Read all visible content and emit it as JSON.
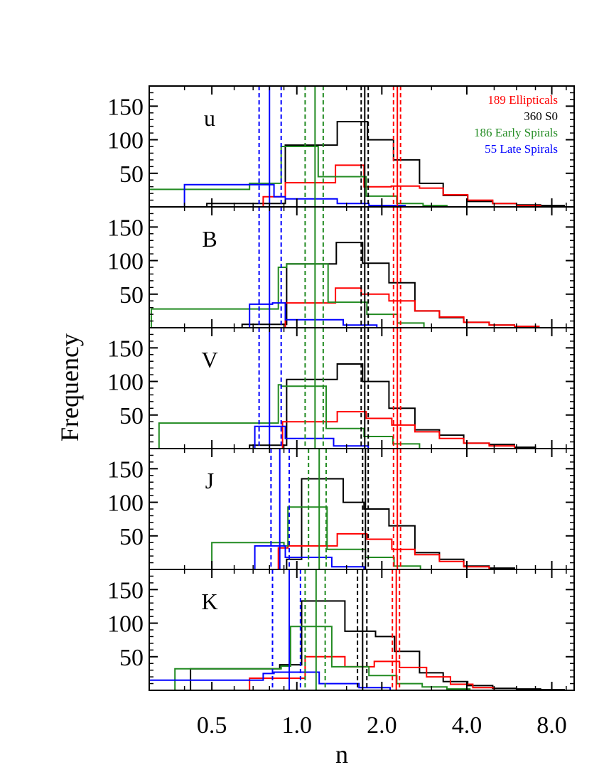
{
  "chart_data": {
    "type": "histogram",
    "xlabel": "n",
    "ylabel": "Frequency",
    "x_scale": "log",
    "xlim": [
      0.3,
      9.6
    ],
    "ylim": [
      0,
      180
    ],
    "x_tick_labels": [
      "0.5",
      "1.0",
      "2.0",
      "4.0",
      "8.0"
    ],
    "x_tick_values": [
      0.5,
      1.0,
      2.0,
      4.0,
      8.0
    ],
    "y_tick_labels": [
      "50",
      "100",
      "150"
    ],
    "y_tick_values": [
      50,
      100,
      150
    ],
    "colors": {
      "Ellipticals": "#ff0000",
      "S0": "#000000",
      "Early Spirals": "#228b22",
      "Late Spirals": "#0000ff"
    },
    "legend": [
      {
        "label": "189 Ellipticals",
        "color": "#ff0000"
      },
      {
        "label": "360 S0",
        "color": "#000000"
      },
      {
        "label": "186 Early Spirals",
        "color": "#228b22"
      },
      {
        "label": "55 Late Spirals",
        "color": "#0000ff"
      }
    ],
    "panels": [
      {
        "band": "u",
        "series": [
          {
            "name": "S0",
            "color": "#000000",
            "edges": [
              0.48,
              0.91,
              1.39,
              1.78,
              2.2,
              2.72,
              3.3,
              4.03,
              4.94,
              6.0,
              7.3,
              8.85
            ],
            "counts": [
              5,
              92,
              127,
              100,
              70,
              35,
              17,
              8,
              5,
              3,
              2
            ]
          },
          {
            "name": "Ellipticals",
            "color": "#ff0000",
            "edges": [
              0.76,
              0.91,
              1.37,
              1.73,
              2.16,
              2.72,
              3.3,
              4.03,
              4.94,
              6.0,
              7.3
            ],
            "counts": [
              15,
              36,
              62,
              30,
              31,
              28,
              18,
              10,
              5,
              2
            ]
          },
          {
            "name": "Early Spirals",
            "color": "#228b22",
            "edges": [
              0.3,
              0.68,
              0.88,
              1.19,
              1.76,
              2.26,
              2.8,
              3.4
            ],
            "counts": [
              26,
              35,
              90,
              45,
              16,
              5,
              2
            ]
          },
          {
            "name": "Late Spirals",
            "color": "#0000ff",
            "edges": [
              0.4,
              0.83,
              0.91,
              1.39,
              1.8,
              2.42
            ],
            "counts": [
              33,
              15,
              12,
              5,
              2
            ]
          }
        ],
        "lines": [
          {
            "color": "#0000ff",
            "x": 0.8,
            "lo": 0.735,
            "hi": 0.88
          },
          {
            "color": "#228b22",
            "x": 1.16,
            "lo": 1.07,
            "hi": 1.24
          },
          {
            "color": "#000000",
            "x": 1.74,
            "lo": 1.69,
            "hi": 1.79
          },
          {
            "color": "#ff0000",
            "x": 2.27,
            "lo": 2.2,
            "hi": 2.33
          }
        ]
      },
      {
        "band": "B",
        "series": [
          {
            "name": "S0",
            "color": "#000000",
            "edges": [
              0.64,
              0.92,
              1.38,
              1.71,
              2.12,
              2.62,
              3.2,
              3.9,
              4.8,
              5.9,
              7.2
            ],
            "counts": [
              5,
              95,
              127,
              96,
              67,
              25,
              15,
              8,
              4,
              2
            ]
          },
          {
            "name": "Ellipticals",
            "color": "#ff0000",
            "edges": [
              0.91,
              1.37,
              1.69,
              2.12,
              2.62,
              3.2,
              3.9,
              4.8,
              5.9,
              7.2
            ],
            "counts": [
              37,
              59,
              50,
              40,
              25,
              16,
              8,
              4,
              2
            ]
          },
          {
            "name": "Early Spirals",
            "color": "#228b22",
            "edges": [
              0.305,
              0.86,
              0.92,
              1.29,
              1.77,
              2.27,
              2.82
            ],
            "counts": [
              28,
              90,
              95,
              38,
              20,
              7
            ]
          },
          {
            "name": "Late Spirals",
            "color": "#0000ff",
            "edges": [
              0.68,
              0.82,
              0.91,
              1.46,
              1.92
            ],
            "counts": [
              35,
              37,
              12,
              4
            ]
          }
        ],
        "lines": [
          {
            "color": "#0000ff",
            "x": 0.8,
            "lo": 0.735,
            "hi": 0.88
          },
          {
            "color": "#228b22",
            "x": 1.16,
            "lo": 1.07,
            "hi": 1.24
          },
          {
            "color": "#000000",
            "x": 1.74,
            "lo": 1.69,
            "hi": 1.79
          },
          {
            "color": "#ff0000",
            "x": 2.27,
            "lo": 2.2,
            "hi": 2.33
          }
        ]
      },
      {
        "band": "V",
        "series": [
          {
            "name": "S0",
            "color": "#000000",
            "edges": [
              0.68,
              0.92,
              1.39,
              1.71,
              2.12,
              2.62,
              3.2,
              3.9,
              4.8,
              5.9,
              7.0
            ],
            "counts": [
              5,
              103,
              126,
              100,
              60,
              28,
              20,
              8,
              6,
              2
            ]
          },
          {
            "name": "Ellipticals",
            "color": "#ff0000",
            "edges": [
              0.89,
              1.39,
              1.76,
              2.17,
              2.62,
              3.2,
              3.9,
              4.8,
              5.9
            ],
            "counts": [
              40,
              55,
              45,
              35,
              25,
              15,
              8,
              4
            ]
          },
          {
            "name": "Early Spirals",
            "color": "#228b22",
            "edges": [
              0.325,
              0.86,
              0.88,
              1.27,
              1.73,
              2.19,
              2.72
            ],
            "counts": [
              38,
              95,
              93,
              30,
              18,
              7
            ]
          },
          {
            "name": "Late Spirals",
            "color": "#0000ff",
            "edges": [
              0.71,
              0.91,
              1.35,
              1.79
            ],
            "counts": [
              33,
              15,
              4
            ]
          }
        ],
        "lines": [
          {
            "color": "#0000ff",
            "x": 0.8,
            "lo": 0.735,
            "hi": 0.88
          },
          {
            "color": "#228b22",
            "x": 1.16,
            "lo": 1.07,
            "hi": 1.24
          },
          {
            "color": "#000000",
            "x": 1.74,
            "lo": 1.69,
            "hi": 1.79
          },
          {
            "color": "#ff0000",
            "x": 2.27,
            "lo": 2.2,
            "hi": 2.33
          }
        ]
      },
      {
        "band": "J",
        "series": [
          {
            "name": "S0",
            "color": "#000000",
            "edges": [
              0.92,
              1.04,
              1.46,
              1.73,
              2.12,
              2.62,
              3.2,
              3.9,
              4.8,
              5.9
            ],
            "counts": [
              15,
              135,
              100,
              90,
              65,
              25,
              15,
              5,
              2
            ]
          },
          {
            "name": "Ellipticals",
            "color": "#ff0000",
            "edges": [
              0.86,
              0.93,
              1.39,
              1.77,
              2.17,
              2.62,
              3.2,
              3.9,
              4.8
            ],
            "counts": [
              32,
              35,
              53,
              45,
              30,
              22,
              12,
              4
            ]
          },
          {
            "name": "Early Spirals",
            "color": "#228b22",
            "edges": [
              0.5,
              0.9,
              0.93,
              1.28,
              1.75,
              2.21,
              2.74
            ],
            "counts": [
              40,
              35,
              93,
              30,
              18,
              5
            ]
          },
          {
            "name": "Late Spirals",
            "color": "#0000ff",
            "edges": [
              0.71,
              0.87,
              0.91,
              1.33,
              1.73
            ],
            "counts": [
              35,
              35,
              18,
              4
            ]
          }
        ],
        "lines": [
          {
            "color": "#0000ff",
            "x": 0.87,
            "lo": 0.81,
            "hi": 0.94
          },
          {
            "color": "#228b22",
            "x": 1.2,
            "lo": 1.1,
            "hi": 1.27
          },
          {
            "color": "#000000",
            "x": 1.75,
            "lo": 1.71,
            "hi": 1.79
          },
          {
            "color": "#ff0000",
            "x": 2.27,
            "lo": 2.2,
            "hi": 2.33
          }
        ]
      },
      {
        "band": "K",
        "series": [
          {
            "name": "S0",
            "color": "#000000",
            "edges": [
              0.42,
              0.87,
              1.04,
              1.48,
              1.9,
              2.22,
              2.72,
              3.3,
              4.03,
              4.94,
              6.0,
              7.3,
              8.85
            ],
            "counts": [
              32,
              38,
              133,
              88,
              80,
              58,
              26,
              13,
              7,
              3,
              2,
              1
            ]
          },
          {
            "name": "Ellipticals",
            "color": "#ff0000",
            "edges": [
              0.68,
              1.07,
              1.48,
              1.88,
              2.31,
              2.88,
              3.5,
              4.2,
              5.0
            ],
            "counts": [
              18,
              50,
              35,
              43,
              34,
              20,
              9,
              4
            ]
          },
          {
            "name": "Early Spirals",
            "color": "#228b22",
            "edges": [
              0.37,
              0.88,
              0.95,
              1.33,
              1.8,
              2.26,
              2.78,
              3.4,
              4.1
            ],
            "counts": [
              32,
              36,
              95,
              35,
              22,
              10,
              5,
              2
            ]
          },
          {
            "name": "Late Spirals",
            "color": "#0000ff",
            "edges": [
              0.3,
              0.76,
              0.83,
              1.2,
              1.66,
              2.14
            ],
            "counts": [
              15,
              25,
              27,
              10,
              4
            ]
          }
        ],
        "lines": [
          {
            "color": "#0000ff",
            "x": 0.94,
            "lo": 0.82,
            "hi": 1.03
          },
          {
            "color": "#228b22",
            "x": 1.17,
            "lo": 1.07,
            "hi": 1.26
          },
          {
            "color": "#000000",
            "x": 1.71,
            "lo": 1.64,
            "hi": 1.77
          },
          {
            "color": "#ff0000",
            "x": 2.25,
            "lo": 2.18,
            "hi": 2.31
          }
        ]
      }
    ]
  }
}
